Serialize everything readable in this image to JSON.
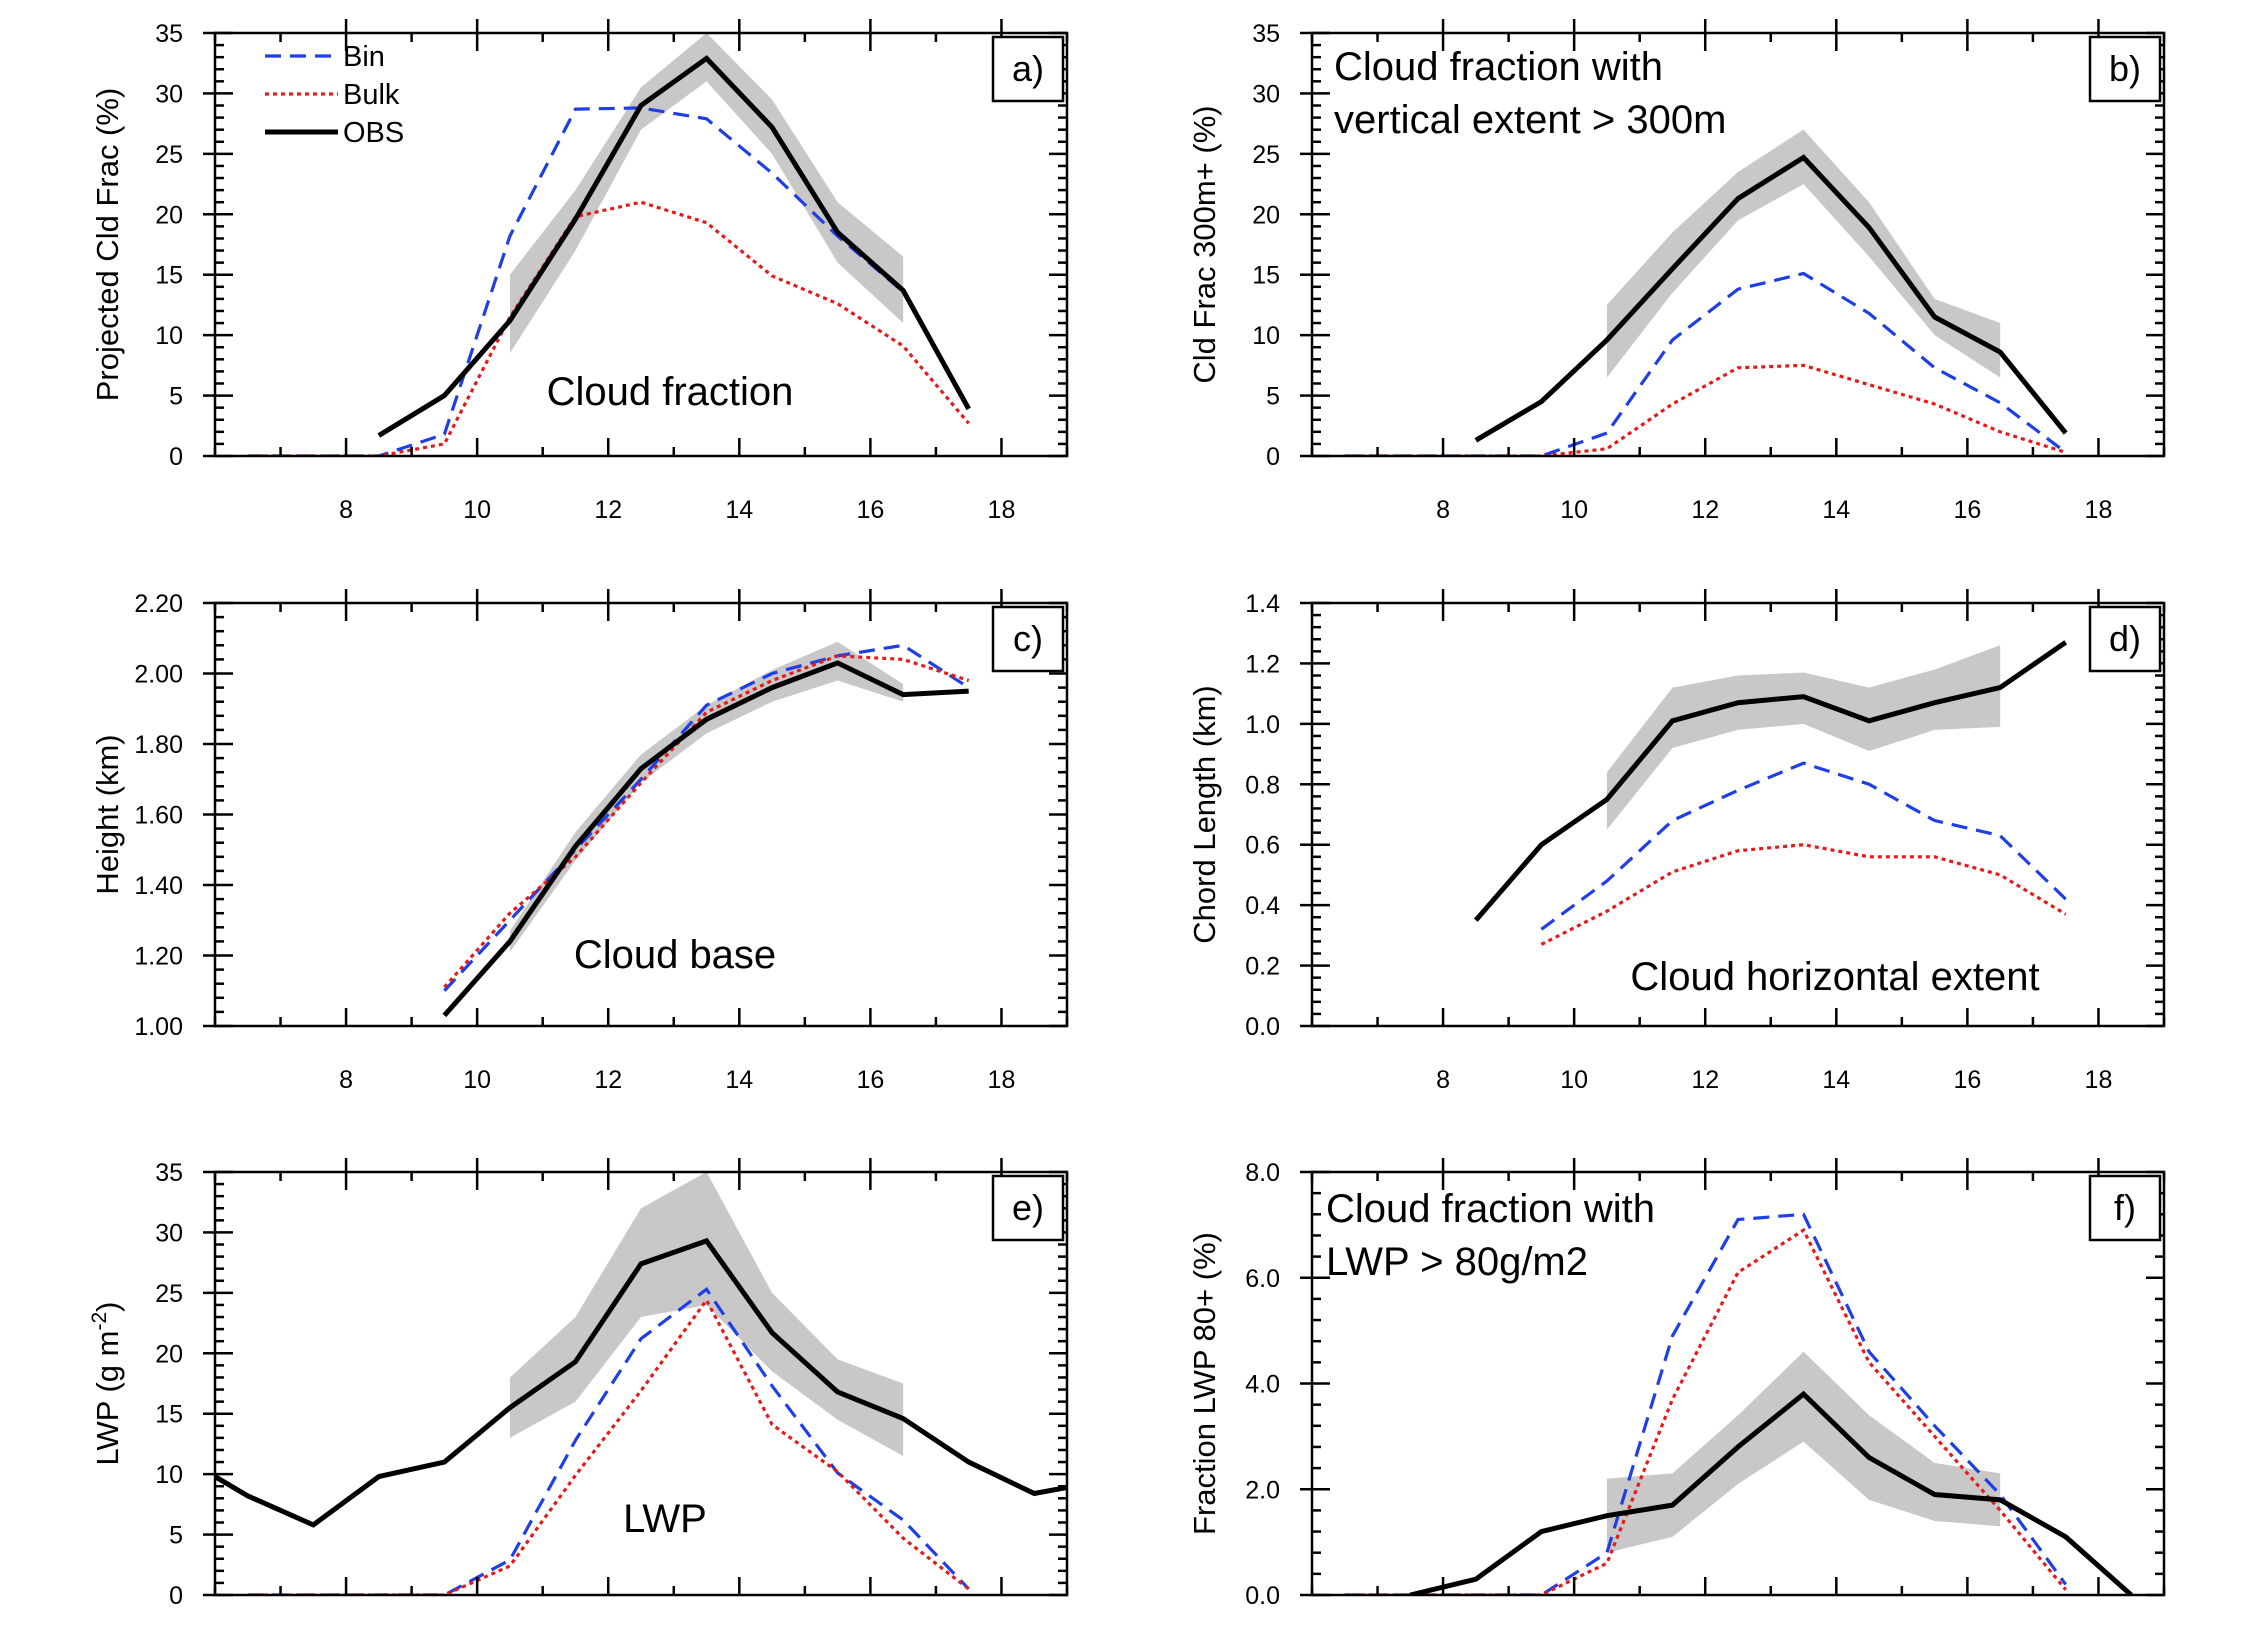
{
  "legend": {
    "entries": [
      {
        "name": "Bin",
        "color": "#1f3fe6",
        "dash": "dashed"
      },
      {
        "name": "Bulk",
        "color": "#e61a1a",
        "dash": "dotted"
      },
      {
        "name": "OBS",
        "color": "#000000",
        "dash": "solid"
      }
    ]
  },
  "colors": {
    "bin": "#1f3fe6",
    "bulk": "#e61a1a",
    "obs": "#000000",
    "obs_range": "#c8c8c8"
  },
  "chart_data": [
    {
      "id": "a",
      "type": "line",
      "panel_label": "a)",
      "ylabel": "Projected Cld Frac (%)",
      "annotation": [
        "Cloud fraction"
      ],
      "xlim": [
        6,
        19
      ],
      "ylim": [
        0,
        35
      ],
      "xticks": [
        8,
        10,
        12,
        14,
        16,
        18
      ],
      "yticks": [
        0,
        5,
        10,
        15,
        20,
        25,
        30,
        35
      ],
      "ytick_labels": [
        "0",
        "5",
        "10",
        "15",
        "20",
        "25",
        "30",
        "35"
      ],
      "show_legend": true,
      "series": [
        {
          "name": "Bin",
          "x": [
            6.5,
            7.5,
            8.5,
            9.5,
            10.5,
            11.5,
            12.5,
            13.5,
            14.5,
            15.5,
            16.5,
            17.5
          ],
          "y": [
            0,
            0,
            0,
            1.8,
            18.2,
            28.7,
            28.8,
            27.9,
            23.4,
            18.2,
            13.6,
            4.0
          ]
        },
        {
          "name": "Bulk",
          "x": [
            6.5,
            7.5,
            8.5,
            9.5,
            10.5,
            11.5,
            12.5,
            13.5,
            14.5,
            15.5,
            16.5,
            17.5
          ],
          "y": [
            0,
            0,
            0,
            1.0,
            11.5,
            19.8,
            21.0,
            19.3,
            14.9,
            12.6,
            9.1,
            2.7
          ]
        },
        {
          "name": "OBS",
          "x": [
            8.5,
            9.5,
            10.5,
            11.5,
            12.5,
            13.5,
            14.5,
            15.5,
            16.5,
            17.5
          ],
          "y": [
            1.7,
            5.0,
            11.2,
            19.6,
            29.0,
            32.9,
            27.2,
            18.5,
            13.7,
            3.9
          ]
        }
      ],
      "obs_band": {
        "x": [
          10.5,
          11.5,
          12.5,
          13.5,
          14.5,
          15.5,
          16.5
        ],
        "low": [
          8.5,
          17.0,
          27.0,
          31.0,
          25.0,
          16.0,
          11.0
        ],
        "high": [
          15.0,
          22.0,
          30.5,
          35.0,
          29.5,
          21.0,
          16.5
        ]
      }
    },
    {
      "id": "b",
      "type": "line",
      "panel_label": "b)",
      "ylabel": "Cld Frac 300m+ (%)",
      "annotation": [
        "Cloud fraction with",
        "vertical extent > 300m"
      ],
      "xlim": [
        6,
        19
      ],
      "ylim": [
        0,
        35
      ],
      "xticks": [
        8,
        10,
        12,
        14,
        16,
        18
      ],
      "yticks": [
        0,
        5,
        10,
        15,
        20,
        25,
        30,
        35
      ],
      "ytick_labels": [
        "0",
        "5",
        "10",
        "15",
        "20",
        "25",
        "30",
        "35"
      ],
      "show_legend": false,
      "series": [
        {
          "name": "Bin",
          "x": [
            6.5,
            7.5,
            8.5,
            9.5,
            10.5,
            11.5,
            12.5,
            13.5,
            14.5,
            15.5,
            16.5,
            17.5
          ],
          "y": [
            0,
            0,
            0,
            0,
            1.9,
            9.6,
            13.8,
            15.1,
            11.8,
            7.3,
            4.4,
            0.3
          ]
        },
        {
          "name": "Bulk",
          "x": [
            6.5,
            7.5,
            8.5,
            9.5,
            10.5,
            11.5,
            12.5,
            13.5,
            14.5,
            15.5,
            16.5,
            17.5
          ],
          "y": [
            0,
            0,
            0,
            0,
            0.6,
            4.3,
            7.3,
            7.5,
            5.9,
            4.3,
            2.0,
            0.3
          ]
        },
        {
          "name": "OBS",
          "x": [
            8.5,
            9.5,
            10.5,
            11.5,
            12.5,
            13.5,
            14.5,
            15.5,
            16.5,
            17.5
          ],
          "y": [
            1.3,
            4.5,
            9.6,
            15.5,
            21.3,
            24.7,
            18.9,
            11.5,
            8.6,
            1.9
          ]
        }
      ],
      "obs_band": {
        "x": [
          10.5,
          11.5,
          12.5,
          13.5,
          14.5,
          15.5,
          16.5
        ],
        "low": [
          6.5,
          13.5,
          19.5,
          22.5,
          16.5,
          10.0,
          6.5
        ],
        "high": [
          12.5,
          18.5,
          23.5,
          27.0,
          21.0,
          13.0,
          11.0
        ]
      }
    },
    {
      "id": "c",
      "type": "line",
      "panel_label": "c)",
      "ylabel": "Height (km)",
      "annotation": [
        "Cloud base"
      ],
      "xlim": [
        6,
        19
      ],
      "ylim": [
        1.0,
        2.2
      ],
      "xticks": [
        8,
        10,
        12,
        14,
        16,
        18
      ],
      "yticks": [
        1.0,
        1.2,
        1.4,
        1.6,
        1.8,
        2.0,
        2.2
      ],
      "ytick_labels": [
        "1.00",
        "1.20",
        "1.40",
        "1.60",
        "1.80",
        "2.00",
        "2.20"
      ],
      "show_legend": false,
      "series": [
        {
          "name": "Bin",
          "x": [
            9.5,
            10.5,
            11.5,
            12.5,
            13.5,
            14.5,
            15.5,
            16.5,
            17.5
          ],
          "y": [
            1.1,
            1.3,
            1.5,
            1.7,
            1.91,
            2.0,
            2.05,
            2.08,
            1.96
          ]
        },
        {
          "name": "Bulk",
          "x": [
            9.5,
            10.5,
            11.5,
            12.5,
            13.5,
            14.5,
            15.5,
            16.5,
            17.5
          ],
          "y": [
            1.11,
            1.32,
            1.48,
            1.69,
            1.89,
            1.98,
            2.05,
            2.04,
            1.98
          ]
        },
        {
          "name": "OBS",
          "x": [
            9.5,
            10.5,
            11.5,
            12.5,
            13.5,
            14.5,
            15.5,
            16.5,
            17.5
          ],
          "y": [
            1.03,
            1.24,
            1.51,
            1.73,
            1.87,
            1.96,
            2.03,
            1.94,
            1.95
          ]
        }
      ],
      "obs_band": {
        "x": [
          10.5,
          11.5,
          12.5,
          13.5,
          14.5,
          15.5,
          16.5
        ],
        "low": [
          1.21,
          1.47,
          1.69,
          1.83,
          1.92,
          1.98,
          1.92
        ],
        "high": [
          1.27,
          1.55,
          1.77,
          1.91,
          2.01,
          2.09,
          1.97
        ]
      }
    },
    {
      "id": "d",
      "type": "line",
      "panel_label": "d)",
      "ylabel": "Chord Length (km)",
      "annotation": [
        "Cloud horizontal extent"
      ],
      "xlim": [
        6,
        19
      ],
      "ylim": [
        0,
        1.4
      ],
      "xticks": [
        8,
        10,
        12,
        14,
        16,
        18
      ],
      "yticks": [
        0,
        0.2,
        0.4,
        0.6,
        0.8,
        1.0,
        1.2,
        1.4
      ],
      "ytick_labels": [
        "0.0",
        "0.2",
        "0.4",
        "0.6",
        "0.8",
        "1.0",
        "1.2",
        "1.4"
      ],
      "show_legend": false,
      "series": [
        {
          "name": "Bin",
          "x": [
            9.5,
            10.5,
            11.5,
            12.5,
            13.5,
            14.5,
            15.5,
            16.5,
            17.5
          ],
          "y": [
            0.32,
            0.48,
            0.68,
            0.78,
            0.87,
            0.8,
            0.68,
            0.63,
            0.42
          ]
        },
        {
          "name": "Bulk",
          "x": [
            9.5,
            10.5,
            11.5,
            12.5,
            13.5,
            14.5,
            15.5,
            16.5,
            17.5
          ],
          "y": [
            0.27,
            0.38,
            0.51,
            0.58,
            0.6,
            0.56,
            0.56,
            0.5,
            0.37
          ]
        },
        {
          "name": "OBS",
          "x": [
            8.5,
            9.5,
            10.5,
            11.5,
            12.5,
            13.5,
            14.5,
            15.5,
            16.5,
            17.5
          ],
          "y": [
            0.35,
            0.6,
            0.75,
            1.01,
            1.07,
            1.09,
            1.01,
            1.07,
            1.12,
            1.27
          ]
        }
      ],
      "obs_band": {
        "x": [
          10.5,
          11.5,
          12.5,
          13.5,
          14.5,
          15.5,
          16.5
        ],
        "low": [
          0.65,
          0.92,
          0.98,
          1.0,
          0.91,
          0.98,
          0.99
        ],
        "high": [
          0.84,
          1.12,
          1.16,
          1.17,
          1.12,
          1.18,
          1.26
        ]
      }
    },
    {
      "id": "e",
      "type": "line",
      "panel_label": "e)",
      "ylabel": "LWP (g m^-2)",
      "ylabel_parts": [
        "LWP (g m",
        "-2",
        ")"
      ],
      "annotation": [
        "LWP"
      ],
      "xlim": [
        6,
        19
      ],
      "ylim": [
        0,
        35
      ],
      "xticks": [
        8,
        10,
        12,
        14,
        16,
        18
      ],
      "yticks": [
        0,
        5,
        10,
        15,
        20,
        25,
        30,
        35
      ],
      "ytick_labels": [
        "0",
        "5",
        "10",
        "15",
        "20",
        "25",
        "30",
        "35"
      ],
      "show_legend": false,
      "series": [
        {
          "name": "Bin",
          "x": [
            6.5,
            7.5,
            8.5,
            9.5,
            10.5,
            11.5,
            12.5,
            13.5,
            14.5,
            15.5,
            16.5,
            17.5
          ],
          "y": [
            0,
            0,
            0,
            0,
            2.9,
            12.8,
            21.2,
            25.3,
            17.3,
            10.1,
            6.2,
            0.5
          ]
        },
        {
          "name": "Bulk",
          "x": [
            6.5,
            7.5,
            8.5,
            9.5,
            10.5,
            11.5,
            12.5,
            13.5,
            14.5,
            15.5,
            16.5,
            17.5
          ],
          "y": [
            0,
            0,
            0,
            0,
            2.4,
            9.9,
            16.9,
            24.4,
            14.1,
            10.2,
            4.7,
            0.5
          ]
        },
        {
          "name": "OBS",
          "x": [
            6.0,
            6.5,
            7.5,
            8.5,
            9.5,
            10.5,
            11.5,
            12.5,
            13.5,
            14.5,
            15.5,
            16.5,
            17.5,
            18.5,
            19.0
          ],
          "y": [
            9.8,
            8.2,
            5.8,
            9.8,
            11.0,
            15.5,
            19.3,
            27.4,
            29.3,
            21.7,
            16.8,
            14.6,
            11.0,
            8.4,
            8.9
          ]
        }
      ],
      "obs_band": {
        "x": [
          10.5,
          11.5,
          12.5,
          13.5,
          14.5,
          15.5,
          16.5
        ],
        "low": [
          13.0,
          16.0,
          23.0,
          24.0,
          18.5,
          14.5,
          11.5
        ],
        "high": [
          18.0,
          23.0,
          32.0,
          35.0,
          25.0,
          19.5,
          17.5
        ]
      }
    },
    {
      "id": "f",
      "type": "line",
      "panel_label": "f)",
      "ylabel": "Fraction LWP 80+ (%)",
      "annotation": [
        "Cloud fraction with",
        "LWP > 80g/m2"
      ],
      "xlim": [
        6,
        19
      ],
      "ylim": [
        0,
        8
      ],
      "xticks": [
        8,
        10,
        12,
        14,
        16,
        18
      ],
      "yticks": [
        0,
        2,
        4,
        6,
        8
      ],
      "ytick_labels": [
        "0.0",
        "2.0",
        "4.0",
        "6.0",
        "8.0"
      ],
      "show_legend": false,
      "series": [
        {
          "name": "Bin",
          "x": [
            6.5,
            7.5,
            8.5,
            9.5,
            10.5,
            11.5,
            12.5,
            13.5,
            14.5,
            15.5,
            16.5,
            17.5
          ],
          "y": [
            0,
            0,
            0,
            0,
            0.8,
            4.9,
            7.1,
            7.2,
            4.6,
            3.2,
            1.9,
            0.2
          ]
        },
        {
          "name": "Bulk",
          "x": [
            6.5,
            7.5,
            8.5,
            9.5,
            10.5,
            11.5,
            12.5,
            13.5,
            14.5,
            15.5,
            16.5,
            17.5
          ],
          "y": [
            0,
            0,
            0,
            0,
            0.6,
            3.7,
            6.1,
            6.9,
            4.4,
            3.0,
            1.6,
            0.1
          ]
        },
        {
          "name": "OBS",
          "x": [
            7.5,
            8.5,
            9.5,
            10.5,
            11.5,
            12.5,
            13.5,
            14.5,
            15.5,
            16.5,
            17.5,
            18.5
          ],
          "y": [
            0,
            0.3,
            1.2,
            1.5,
            1.7,
            2.8,
            3.8,
            2.6,
            1.9,
            1.8,
            1.1,
            0
          ]
        }
      ],
      "obs_band": {
        "x": [
          10.5,
          11.5,
          12.5,
          13.5,
          14.5,
          15.5,
          16.5
        ],
        "low": [
          0.8,
          1.1,
          2.1,
          2.9,
          1.8,
          1.4,
          1.3
        ],
        "high": [
          2.2,
          2.3,
          3.4,
          4.6,
          3.4,
          2.5,
          2.3
        ]
      }
    }
  ]
}
